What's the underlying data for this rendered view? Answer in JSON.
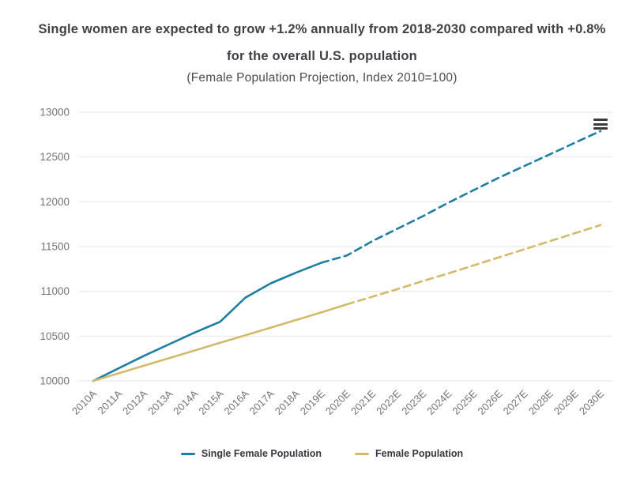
{
  "header": {
    "title": "Single women are expected to grow +1.2% annually from 2018-2030 compared with +0.8% for the overall U.S. population",
    "subtitle": "(Female Population Projection, Index 2010=100)"
  },
  "icons": {
    "export_menu": "hamburger"
  },
  "chart_data": {
    "type": "line",
    "title": "Single women are expected to grow +1.2% annually from 2018-2030 compared with +0.8% for the overall U.S. population",
    "subtitle": "(Female Population Projection, Index 2010=100)",
    "xlabel": "",
    "ylabel": "",
    "ylim": [
      10000,
      13000
    ],
    "yticks": [
      10000,
      10500,
      11000,
      11500,
      12000,
      12500,
      13000
    ],
    "grid": true,
    "legend_position": "bottom",
    "categories": [
      "2010A",
      "2011A",
      "2012A",
      "2013A",
      "2014A",
      "2015A",
      "2016A",
      "2017A",
      "2018A",
      "2019E",
      "2020E",
      "2021E",
      "2022E",
      "2023E",
      "2024E",
      "2025E",
      "2026E",
      "2027E",
      "2028E",
      "2029E",
      "2030E"
    ],
    "series": [
      {
        "name": "Single Female Population",
        "color": "#1f7ea4",
        "solid_until_index": 9,
        "values": [
          10000,
          10140,
          10280,
          10410,
          10540,
          10660,
          10930,
          11090,
          11210,
          11320,
          11400,
          11560,
          11700,
          11840,
          11990,
          12130,
          12270,
          12400,
          12530,
          12660,
          12790
        ]
      },
      {
        "name": "Female Population",
        "color": "#d2ba6a",
        "solid_until_index": 10,
        "values": [
          10000,
          10085,
          10170,
          10255,
          10340,
          10425,
          10510,
          10595,
          10680,
          10765,
          10855,
          10940,
          11025,
          11115,
          11200,
          11290,
          11380,
          11470,
          11560,
          11650,
          11740
        ]
      }
    ]
  }
}
